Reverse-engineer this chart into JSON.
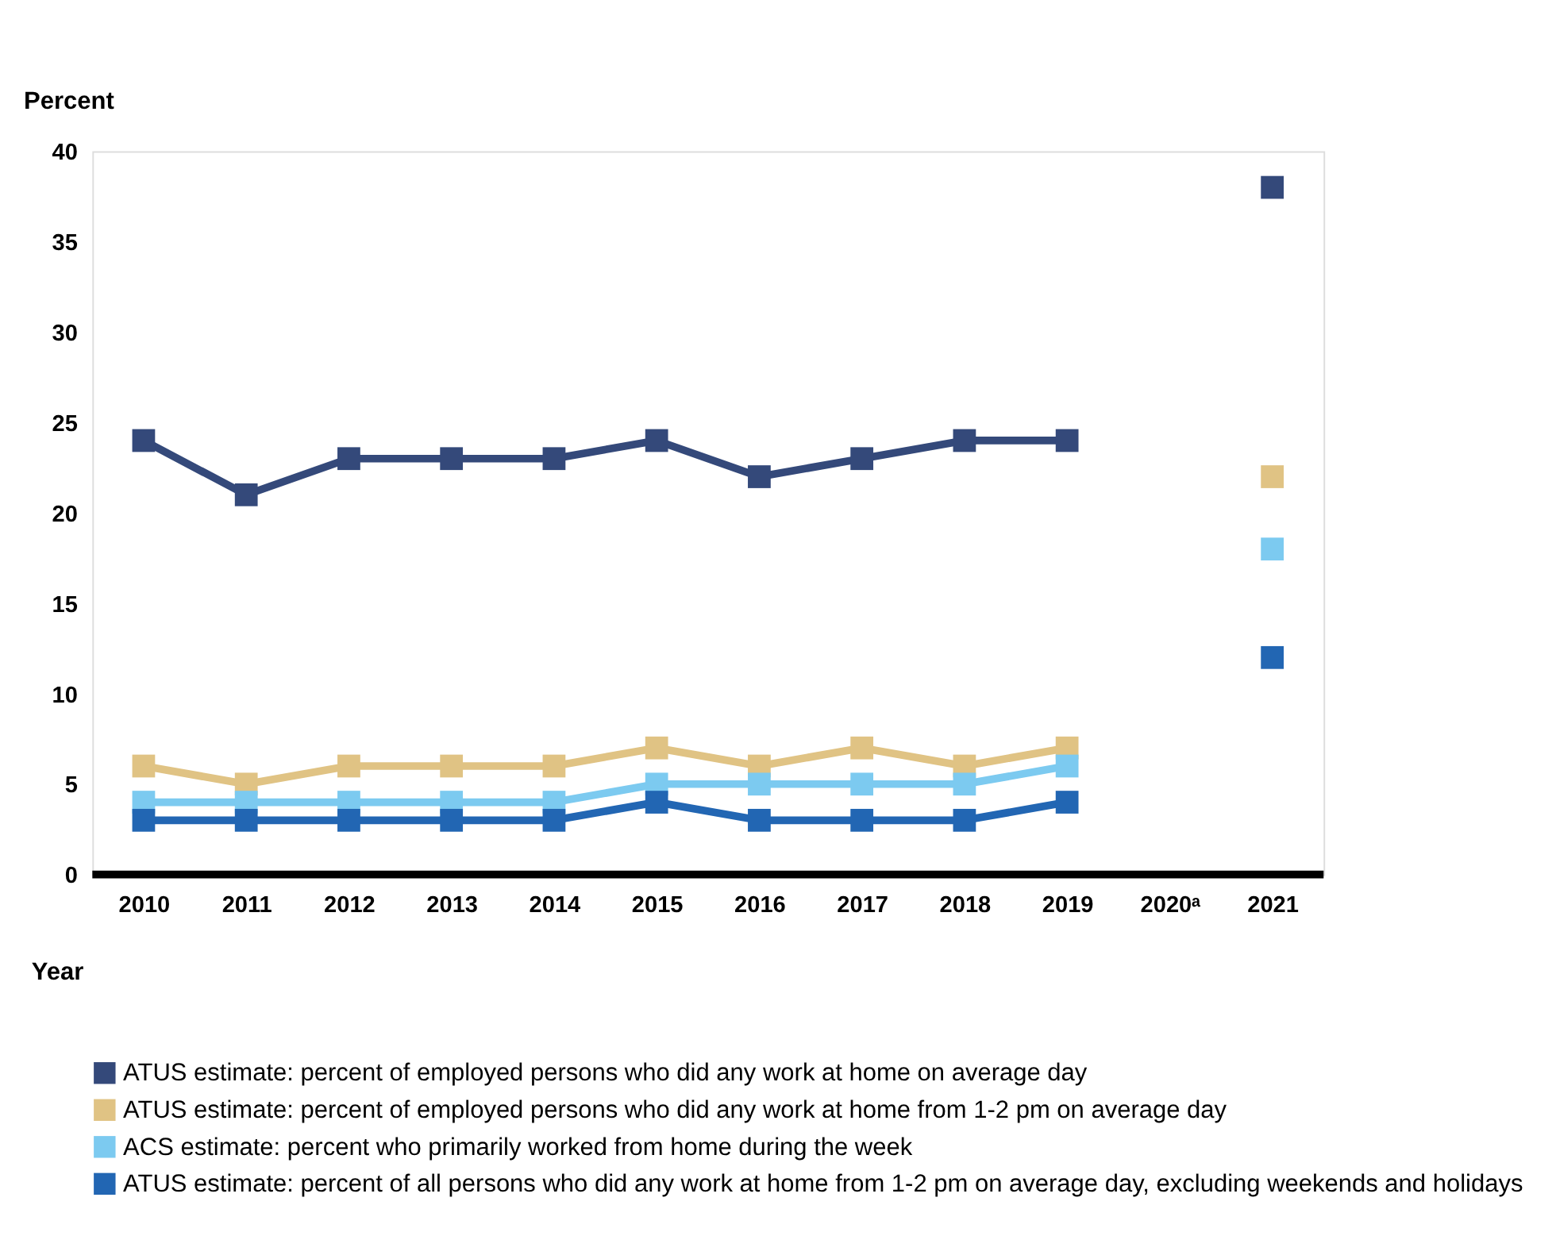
{
  "chart_data": {
    "type": "line",
    "xlabel": "Year",
    "ylabel": "Percent",
    "categories": [
      "2010",
      "2011",
      "2012",
      "2013",
      "2014",
      "2015",
      "2016",
      "2017",
      "2018",
      "2019",
      "2020ᵃ",
      "2021"
    ],
    "series": [
      {
        "name": "ATUS estimate: percent of employed persons who did any work at home on average day",
        "color": "#34497a",
        "values": [
          24,
          21,
          23,
          23,
          23,
          24,
          22,
          23,
          24,
          24,
          null,
          38
        ]
      },
      {
        "name": "ATUS estimate: percent of employed persons who did any work at home from 1-2 pm on average day",
        "color": "#e0c384",
        "values": [
          6,
          5,
          6,
          6,
          6,
          7,
          6,
          7,
          6,
          7,
          null,
          22
        ]
      },
      {
        "name": "ACS estimate: percent who primarily worked from home during the week",
        "color": "#7ccaf0",
        "values": [
          4,
          4,
          4,
          4,
          4,
          5,
          5,
          5,
          5,
          6,
          null,
          18
        ]
      },
      {
        "name": "ATUS estimate: percent of all persons who did any work at home from 1-2 pm on average day, excluding weekends and holidays",
        "color": "#2266b3",
        "values": [
          3,
          3,
          3,
          3,
          3,
          4,
          3,
          3,
          3,
          4,
          null,
          12
        ]
      }
    ],
    "ylim": [
      0,
      40
    ],
    "yticks": [
      0,
      5,
      10,
      15,
      20,
      25,
      30,
      35,
      40
    ],
    "grid": false,
    "legend": "bottom",
    "marker": "square",
    "line_style": "solid"
  }
}
